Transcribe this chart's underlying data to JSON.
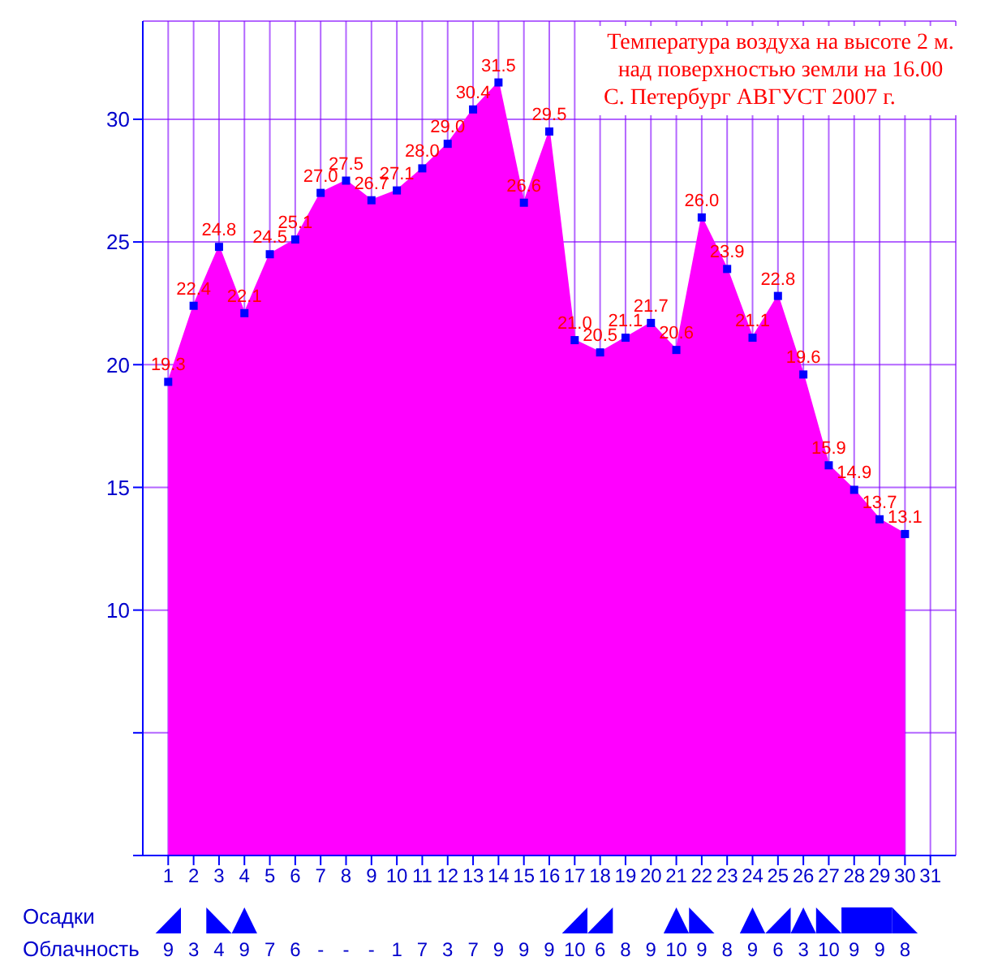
{
  "chart_data": [
    {
      "type": "area",
      "title": "Температура воздуха на высоте 2 м. над поверхностью земли на 16.00",
      "subtitle": "С. Петербург АВГУСТ 2007 г.",
      "x": [
        1,
        2,
        3,
        4,
        5,
        6,
        7,
        8,
        9,
        10,
        11,
        12,
        13,
        14,
        15,
        16,
        17,
        18,
        19,
        20,
        21,
        22,
        23,
        24,
        25,
        26,
        27,
        28,
        29,
        30
      ],
      "series": [
        {
          "color": "#ff00ff",
          "values": [
            19.3,
            22.4,
            24.8,
            22.1,
            24.5,
            25.1,
            27.0,
            27.5,
            26.7,
            27.1,
            28.0,
            29.0,
            30.4,
            31.5,
            26.6,
            29.5,
            21.0,
            20.5,
            21.1,
            21.7,
            20.6,
            26.0,
            23.9,
            21.1,
            22.8,
            19.6,
            15.9,
            14.9,
            13.7,
            13.1
          ]
        }
      ],
      "xlim": [
        0,
        32
      ],
      "xticks": [
        1,
        2,
        3,
        4,
        5,
        6,
        7,
        8,
        9,
        10,
        11,
        12,
        13,
        14,
        15,
        16,
        17,
        18,
        19,
        20,
        21,
        22,
        23,
        24,
        25,
        26,
        27,
        28,
        29,
        30,
        31
      ],
      "ylim": [
        0,
        34
      ],
      "yticks": [
        {
          "value": 0,
          "label": null
        },
        {
          "value": 5,
          "label": null
        },
        10,
        15,
        20,
        25,
        30
      ],
      "value_labels": [
        "19.3",
        "22.4",
        "24.8",
        "22.1",
        "24.5",
        "25.1",
        "27.0",
        "27.5",
        "26.7",
        "27.1",
        "28.0",
        "29.0",
        "30.4",
        "31.5",
        "26.6",
        "29.5",
        "21.0",
        "20.5",
        "21.1",
        "21.7",
        "20.6",
        "26.0",
        "23.9",
        "21.1",
        "22.8",
        "19.6",
        "15.9",
        "14.9",
        "13.7",
        "13.1"
      ],
      "grid": true,
      "marker": "square"
    },
    {
      "type": "other",
      "title": "Облачность",
      "annotations": [
        "Осадки"
      ],
      "categories": [
        null,
        null,
        null,
        null,
        null,
        null,
        null,
        null,
        null,
        null,
        null,
        null,
        null,
        null,
        null,
        null,
        null,
        null,
        null,
        null,
        null,
        null,
        null,
        null,
        null,
        null,
        null,
        null,
        null,
        null
      ],
      "value_labels": [
        "9",
        "3",
        "4",
        "9",
        "7",
        "6",
        "-",
        "-",
        "-",
        "1",
        "7",
        "3",
        "7",
        "9",
        "9",
        "9",
        "10",
        "6",
        "8",
        "9",
        "10",
        "9",
        "8",
        "9",
        "6",
        "3",
        "10",
        "9",
        "9",
        "8"
      ]
    }
  ]
}
